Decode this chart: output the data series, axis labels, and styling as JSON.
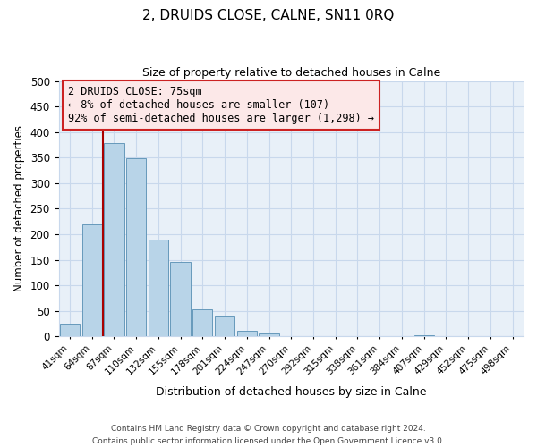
{
  "title": "2, DRUIDS CLOSE, CALNE, SN11 0RQ",
  "subtitle": "Size of property relative to detached houses in Calne",
  "xlabel": "Distribution of detached houses by size in Calne",
  "ylabel": "Number of detached properties",
  "bar_labels": [
    "41sqm",
    "64sqm",
    "87sqm",
    "110sqm",
    "132sqm",
    "155sqm",
    "178sqm",
    "201sqm",
    "224sqm",
    "247sqm",
    "270sqm",
    "292sqm",
    "315sqm",
    "338sqm",
    "361sqm",
    "384sqm",
    "407sqm",
    "429sqm",
    "452sqm",
    "475sqm",
    "498sqm"
  ],
  "bar_values": [
    25,
    220,
    378,
    348,
    190,
    146,
    53,
    40,
    12,
    6,
    0,
    0,
    0,
    0,
    0,
    0,
    2,
    0,
    0,
    0,
    0
  ],
  "bar_color": "#b8d4e8",
  "bar_edge_color": "#6699bb",
  "grid_color": "#c8d8ec",
  "bg_color": "#e8f0f8",
  "ylim": [
    0,
    500
  ],
  "yticks": [
    0,
    50,
    100,
    150,
    200,
    250,
    300,
    350,
    400,
    450,
    500
  ],
  "vline_color": "#aa0000",
  "annotation_title": "2 DRUIDS CLOSE: 75sqm",
  "annotation_line1": "← 8% of detached houses are smaller (107)",
  "annotation_line2": "92% of semi-detached houses are larger (1,298) →",
  "annotation_box_facecolor": "#fce8e8",
  "annotation_border_color": "#cc2222",
  "footer_line1": "Contains HM Land Registry data © Crown copyright and database right 2024.",
  "footer_line2": "Contains public sector information licensed under the Open Government Licence v3.0."
}
